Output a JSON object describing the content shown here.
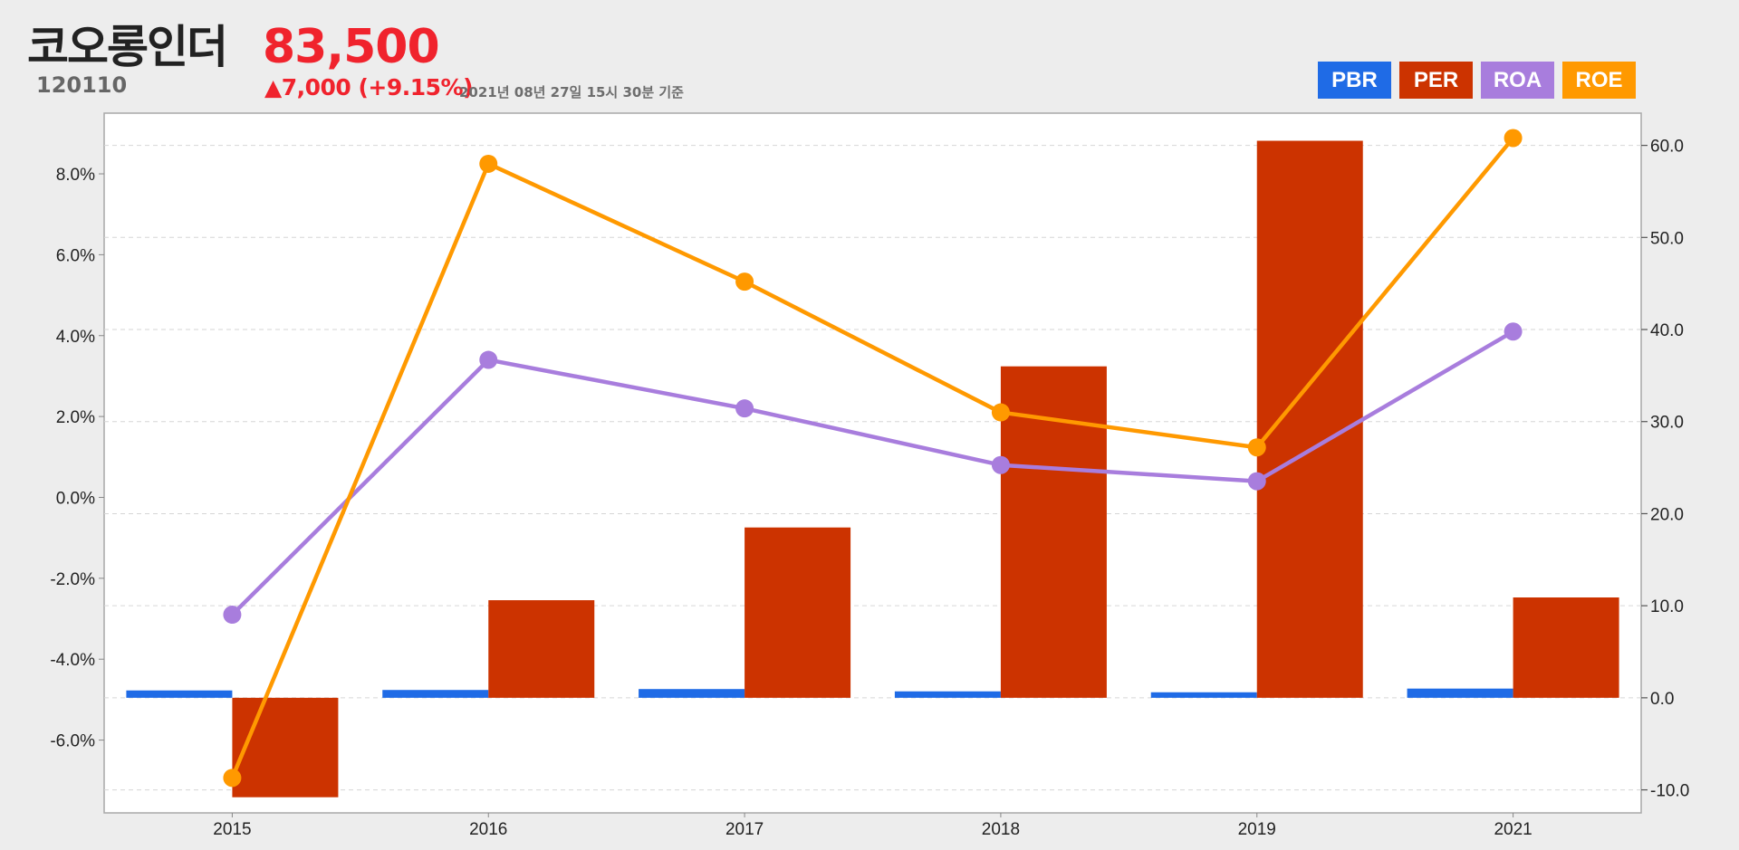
{
  "header": {
    "stock_name": "코오롱인더",
    "stock_code": "120110",
    "price": "83,500",
    "change": "▲7,000 (+9.15%)",
    "timestamp": "2021년 08년 27일 15시 30분 기준"
  },
  "legend": [
    {
      "label": "PBR",
      "color": "#1f6be6"
    },
    {
      "label": "PER",
      "color": "#cc3300"
    },
    {
      "label": "ROA",
      "color": "#a87ddd"
    },
    {
      "label": "ROE",
      "color": "#ff9900"
    }
  ],
  "chart_data": {
    "type": "bar",
    "categories": [
      "2015",
      "2016",
      "2017",
      "2018",
      "2019",
      "2021"
    ],
    "series": [
      {
        "name": "PBR",
        "type": "bar",
        "axis": "right",
        "color": "#1f6be6",
        "values": [
          0.8,
          0.85,
          0.95,
          0.7,
          0.6,
          1.0
        ]
      },
      {
        "name": "PER",
        "type": "bar",
        "axis": "right",
        "color": "#cc3300",
        "values": [
          -10.8,
          10.6,
          18.5,
          36.0,
          60.5,
          10.9
        ]
      },
      {
        "name": "ROA",
        "type": "line",
        "axis": "left",
        "color": "#a87ddd",
        "values": [
          -2.9,
          3.4,
          2.2,
          0.8,
          0.4,
          4.1
        ]
      },
      {
        "name": "ROE",
        "type": "line",
        "axis": "right",
        "color": "#ff9900",
        "values": [
          -8.7,
          58.0,
          45.2,
          31.0,
          27.2,
          60.8
        ]
      }
    ],
    "left_axis": {
      "ticks": [
        "8.0%",
        "6.0%",
        "4.0%",
        "2.0%",
        "0.0%",
        "-2.0%",
        "-4.0%",
        "-6.0%"
      ],
      "tick_values": [
        8,
        6,
        4,
        2,
        0,
        -2,
        -4,
        -6
      ],
      "range": [
        -7.8,
        9.5
      ]
    },
    "right_axis": {
      "ticks": [
        "60.0",
        "50.0",
        "40.0",
        "30.0",
        "20.0",
        "10.0",
        "0.0",
        "-10.0"
      ],
      "tick_values": [
        60,
        50,
        40,
        30,
        20,
        10,
        0,
        -10
      ],
      "range": [
        -12.5,
        63.5
      ]
    },
    "grid": true,
    "legend_position": "top-right"
  }
}
